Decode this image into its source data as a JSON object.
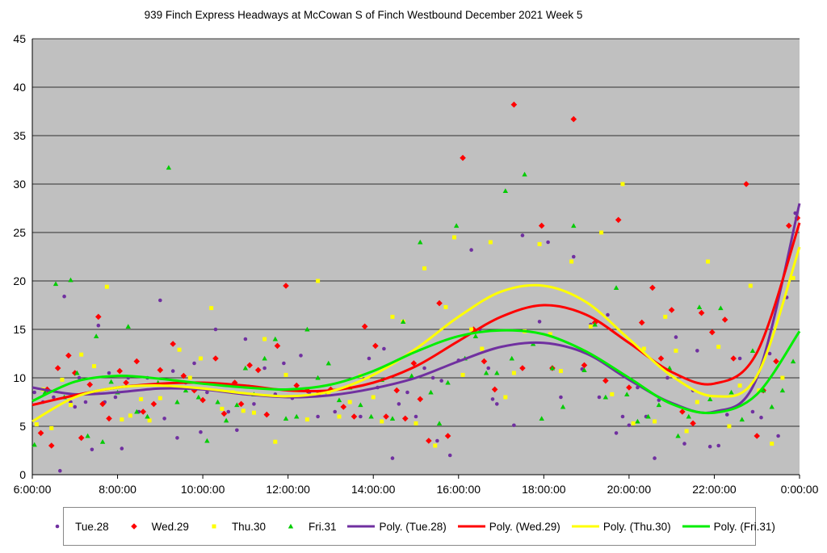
{
  "chart_data": {
    "type": "scatter",
    "title": "939 Finch Express Headways at McCowan S of Finch Westbound December 2021  Week 5",
    "xlabel": "",
    "ylabel": "",
    "xlim_hours": [
      6,
      24
    ],
    "ylim": [
      0,
      45
    ],
    "y_ticks": [
      0,
      5,
      10,
      15,
      20,
      25,
      30,
      35,
      40,
      45
    ],
    "x_tick_labels": [
      "6:00:00",
      "8:00:00",
      "10:00:00",
      "12:00:00",
      "14:00:00",
      "16:00:00",
      "18:00:00",
      "20:00:00",
      "22:00:00",
      "0:00:00"
    ],
    "grid": "horizontal",
    "plot_background": "#c0c0c0",
    "legend_position": "bottom",
    "series": [
      {
        "name": "Tue.28",
        "marker": "circle",
        "color": "#7030a0",
        "x": [
          6.05,
          6.25,
          6.5,
          6.65,
          6.75,
          6.9,
          7.0,
          7.1,
          7.25,
          7.4,
          7.55,
          7.7,
          7.8,
          7.95,
          8.1,
          8.25,
          8.5,
          8.7,
          9.0,
          9.1,
          9.3,
          9.4,
          9.6,
          9.8,
          9.95,
          10.1,
          10.3,
          10.6,
          10.8,
          11.0,
          11.2,
          11.45,
          11.7,
          11.9,
          12.1,
          12.3,
          12.5,
          12.7,
          12.9,
          13.1,
          13.4,
          13.7,
          13.9,
          14.1,
          14.25,
          14.45,
          14.6,
          14.8,
          15.0,
          15.2,
          15.4,
          15.5,
          15.6,
          15.8,
          16.0,
          16.3,
          16.5,
          16.7,
          16.8,
          16.9,
          17.3,
          17.5,
          17.9,
          18.1,
          18.4,
          18.7,
          18.9,
          19.1,
          19.3,
          19.5,
          19.7,
          19.85,
          20.0,
          20.2,
          20.4,
          20.6,
          20.7,
          20.9,
          21.1,
          21.3,
          21.5,
          21.6,
          21.9,
          22.1,
          22.3,
          22.6,
          22.9,
          23.1,
          23.3,
          23.5,
          23.7,
          23.9
        ],
        "y": [
          8.5,
          7.5,
          8.0,
          0.4,
          18.4,
          7.5,
          7.0,
          10.0,
          7.5,
          2.6,
          15.4,
          7.5,
          10.5,
          8.0,
          2.7,
          10.0,
          6.5,
          10.0,
          18.0,
          5.8,
          10.7,
          3.8,
          9.5,
          11.5,
          4.4,
          8.5,
          15.0,
          6.5,
          4.6,
          14.0,
          7.3,
          11.0,
          8.3,
          11.5,
          7.9,
          12.3,
          8.5,
          6.0,
          8.5,
          6.5,
          9.0,
          6.0,
          12.0,
          9.0,
          13.0,
          1.7,
          7.3,
          8.5,
          6.0,
          11.0,
          10.0,
          3.5,
          9.7,
          2.0,
          11.8,
          23.2,
          15.0,
          11.0,
          7.8,
          7.3,
          5.1,
          24.7,
          15.8,
          24.0,
          8.0,
          22.5,
          10.9,
          15.5,
          8.0,
          16.5,
          4.3,
          6.0,
          5.1,
          9.0,
          6.0,
          1.7,
          7.7,
          10.0,
          14.2,
          3.2,
          8.7,
          12.8,
          2.9,
          3.0,
          6.2,
          12.0,
          6.5,
          5.9,
          12.5,
          4.0,
          18.3,
          27.0
        ],
        "fit_degree": 5
      },
      {
        "name": "Wed.29",
        "marker": "diamond",
        "color": "#ff0000",
        "x": [
          6.2,
          6.35,
          6.45,
          6.6,
          6.85,
          7.0,
          7.15,
          7.35,
          7.55,
          7.65,
          7.8,
          8.05,
          8.2,
          8.45,
          8.6,
          8.85,
          9.0,
          9.3,
          9.55,
          9.8,
          10.0,
          10.3,
          10.5,
          10.75,
          10.9,
          11.1,
          11.3,
          11.5,
          11.75,
          11.95,
          12.2,
          12.45,
          12.7,
          13.0,
          13.3,
          13.55,
          13.8,
          14.05,
          14.3,
          14.55,
          14.75,
          14.95,
          15.1,
          15.3,
          15.55,
          15.75,
          16.1,
          16.35,
          16.6,
          16.85,
          17.3,
          17.5,
          17.95,
          18.2,
          18.7,
          18.95,
          19.2,
          19.45,
          19.75,
          20.0,
          20.3,
          20.55,
          20.75,
          21.0,
          21.25,
          21.5,
          21.7,
          21.95,
          22.25,
          22.45,
          22.75,
          23.0,
          23.15,
          23.45,
          23.75,
          23.95
        ],
        "y": [
          4.3,
          8.8,
          3.0,
          11.0,
          12.3,
          10.5,
          3.8,
          9.3,
          16.3,
          7.3,
          5.8,
          10.7,
          9.5,
          11.7,
          6.5,
          7.3,
          10.8,
          13.5,
          10.2,
          8.7,
          7.7,
          12.0,
          6.3,
          9.5,
          7.3,
          11.3,
          10.8,
          6.2,
          13.3,
          19.5,
          9.2,
          8.7,
          8.3,
          8.8,
          7.0,
          6.0,
          15.3,
          13.3,
          6.0,
          8.7,
          5.8,
          11.5,
          7.8,
          3.5,
          17.7,
          4.0,
          32.7,
          15.0,
          11.7,
          8.8,
          38.2,
          11.0,
          25.7,
          11.0,
          36.7,
          11.3,
          15.7,
          9.7,
          26.3,
          9.0,
          15.7,
          19.3,
          12.0,
          17.0,
          6.5,
          5.3,
          16.7,
          14.7,
          16.0,
          12.0,
          30.0,
          4.0,
          8.7,
          11.7,
          25.7,
          26.5
        ],
        "fit_degree": 5
      },
      {
        "name": "Thu.30",
        "marker": "square",
        "color": "#ffff00",
        "x": [
          6.1,
          6.25,
          6.45,
          6.7,
          6.9,
          7.15,
          7.45,
          7.75,
          8.1,
          8.3,
          8.55,
          8.75,
          9.0,
          9.2,
          9.45,
          9.7,
          9.95,
          10.2,
          10.45,
          10.7,
          10.95,
          11.2,
          11.45,
          11.7,
          11.95,
          12.2,
          12.45,
          12.7,
          12.95,
          13.2,
          13.45,
          13.7,
          14.0,
          14.2,
          14.45,
          14.7,
          15.0,
          15.2,
          15.45,
          15.7,
          15.9,
          16.1,
          16.3,
          16.55,
          16.75,
          17.1,
          17.3,
          17.55,
          17.9,
          18.15,
          18.4,
          18.65,
          18.9,
          19.1,
          19.35,
          19.6,
          19.85,
          20.1,
          20.35,
          20.6,
          20.85,
          21.1,
          21.35,
          21.6,
          21.85,
          22.1,
          22.35,
          22.6,
          22.85,
          23.05,
          23.35,
          23.6,
          23.85
        ],
        "y": [
          5.2,
          8.8,
          4.8,
          9.8,
          7.2,
          12.4,
          11.2,
          19.4,
          5.7,
          6.1,
          7.8,
          5.6,
          7.9,
          9.0,
          12.9,
          10.0,
          12.0,
          17.2,
          6.8,
          8.5,
          6.6,
          6.4,
          14.0,
          3.4,
          10.3,
          8.7,
          5.7,
          20.0,
          8.5,
          6.0,
          7.5,
          10.2,
          8.0,
          5.5,
          16.3,
          15.8,
          5.3,
          21.3,
          3.0,
          17.3,
          24.5,
          10.3,
          15.0,
          13.0,
          24.0,
          8.0,
          10.5,
          14.8,
          23.8,
          14.5,
          10.7,
          22.0,
          12.8,
          15.3,
          25.0,
          8.3,
          30.0,
          5.3,
          13.0,
          5.5,
          16.3,
          12.8,
          4.5,
          7.5,
          22.0,
          13.2,
          5.0,
          9.2,
          19.5,
          8.7,
          3.2,
          10.0,
          20.3
        ],
        "fit_degree": 5
      },
      {
        "name": "Fri.31",
        "marker": "triangle",
        "color": "#00cc00",
        "x": [
          6.05,
          6.3,
          6.55,
          6.75,
          6.9,
          7.05,
          7.3,
          7.5,
          7.65,
          7.85,
          8.0,
          8.25,
          8.45,
          8.7,
          8.95,
          9.2,
          9.4,
          9.6,
          9.9,
          10.1,
          10.35,
          10.55,
          10.8,
          11.0,
          11.2,
          11.45,
          11.7,
          11.95,
          12.2,
          12.45,
          12.7,
          12.95,
          13.2,
          13.45,
          13.7,
          13.95,
          14.2,
          14.45,
          14.7,
          14.9,
          15.1,
          15.35,
          15.55,
          15.75,
          15.95,
          16.15,
          16.4,
          16.65,
          16.9,
          17.1,
          17.25,
          17.55,
          17.75,
          17.95,
          18.2,
          18.45,
          18.7,
          18.95,
          19.2,
          19.45,
          19.7,
          19.95,
          20.2,
          20.45,
          20.7,
          20.95,
          21.15,
          21.4,
          21.65,
          21.9,
          22.15,
          22.4,
          22.65,
          22.9,
          23.15,
          23.35,
          23.6,
          23.85
        ],
        "y": [
          3.1,
          8.5,
          19.7,
          8.0,
          20.1,
          10.5,
          4.0,
          14.3,
          3.4,
          9.6,
          8.5,
          15.3,
          6.5,
          6.0,
          9.5,
          31.7,
          7.5,
          8.7,
          8.0,
          3.5,
          7.5,
          5.6,
          7.2,
          11.0,
          8.3,
          12.0,
          14.0,
          5.8,
          6.0,
          15.0,
          10.0,
          11.5,
          7.7,
          9.0,
          7.2,
          6.0,
          9.8,
          5.8,
          15.8,
          10.2,
          24.0,
          8.5,
          5.3,
          9.5,
          25.7,
          12.0,
          14.3,
          10.5,
          10.5,
          29.3,
          12.0,
          31.0,
          13.5,
          5.8,
          11.0,
          7.0,
          25.7,
          10.8,
          15.5,
          8.0,
          19.3,
          8.3,
          5.5,
          6.0,
          7.2,
          11.0,
          4.0,
          6.0,
          17.3,
          7.8,
          17.2,
          8.5,
          5.7,
          12.8,
          8.7,
          7.0,
          8.7,
          11.7
        ],
        "fit_degree": 5
      }
    ],
    "trendlines": [
      {
        "name": "Poly. (Tue.28)",
        "type": "polynomial",
        "color": "#7030a0",
        "x": [
          6,
          7,
          8,
          9,
          10,
          11,
          12,
          13,
          14,
          15,
          16,
          17,
          18,
          19,
          20,
          21,
          22,
          23,
          24
        ],
        "y": [
          9.0,
          8.3,
          8.5,
          8.9,
          8.8,
          8.3,
          8.0,
          8.2,
          8.9,
          10.0,
          11.7,
          13.2,
          13.6,
          12.5,
          9.8,
          7.4,
          6.5,
          10.0,
          28.0
        ]
      },
      {
        "name": "Poly. (Wed.29)",
        "type": "polynomial",
        "color": "#ff0000",
        "x": [
          6,
          7,
          8,
          9,
          10,
          11,
          12,
          13,
          14,
          15,
          16,
          17,
          18,
          19,
          20,
          21,
          22,
          23,
          24
        ],
        "y": [
          7.2,
          8.2,
          9.0,
          9.4,
          9.5,
          9.2,
          8.7,
          8.7,
          9.5,
          11.2,
          13.8,
          16.3,
          17.5,
          16.5,
          13.6,
          10.6,
          9.4,
          12.6,
          26.0
        ]
      },
      {
        "name": "Poly. (Thu.30)",
        "type": "polynomial",
        "color": "#ffff00",
        "x": [
          6,
          7,
          8,
          9,
          10,
          11,
          12,
          13,
          14,
          15,
          16,
          17,
          18,
          19,
          20,
          21,
          22,
          23,
          24
        ],
        "y": [
          5.5,
          8.0,
          9.0,
          9.2,
          8.9,
          8.4,
          8.1,
          8.6,
          10.3,
          13.0,
          16.3,
          18.9,
          19.5,
          17.8,
          14.0,
          10.2,
          8.1,
          10.2,
          23.5
        ]
      },
      {
        "name": "Poly. (Fri.31)",
        "type": "polynomial",
        "color": "#00ee00",
        "x": [
          6,
          7,
          8,
          9,
          10,
          11,
          12,
          13,
          14,
          15,
          16,
          17,
          18,
          19,
          20,
          21,
          22,
          23,
          24
        ],
        "y": [
          7.6,
          9.6,
          10.2,
          9.9,
          9.4,
          9.0,
          8.8,
          9.3,
          10.7,
          12.7,
          14.3,
          14.9,
          14.5,
          12.7,
          10.0,
          7.3,
          6.4,
          8.3,
          14.8
        ]
      }
    ]
  }
}
